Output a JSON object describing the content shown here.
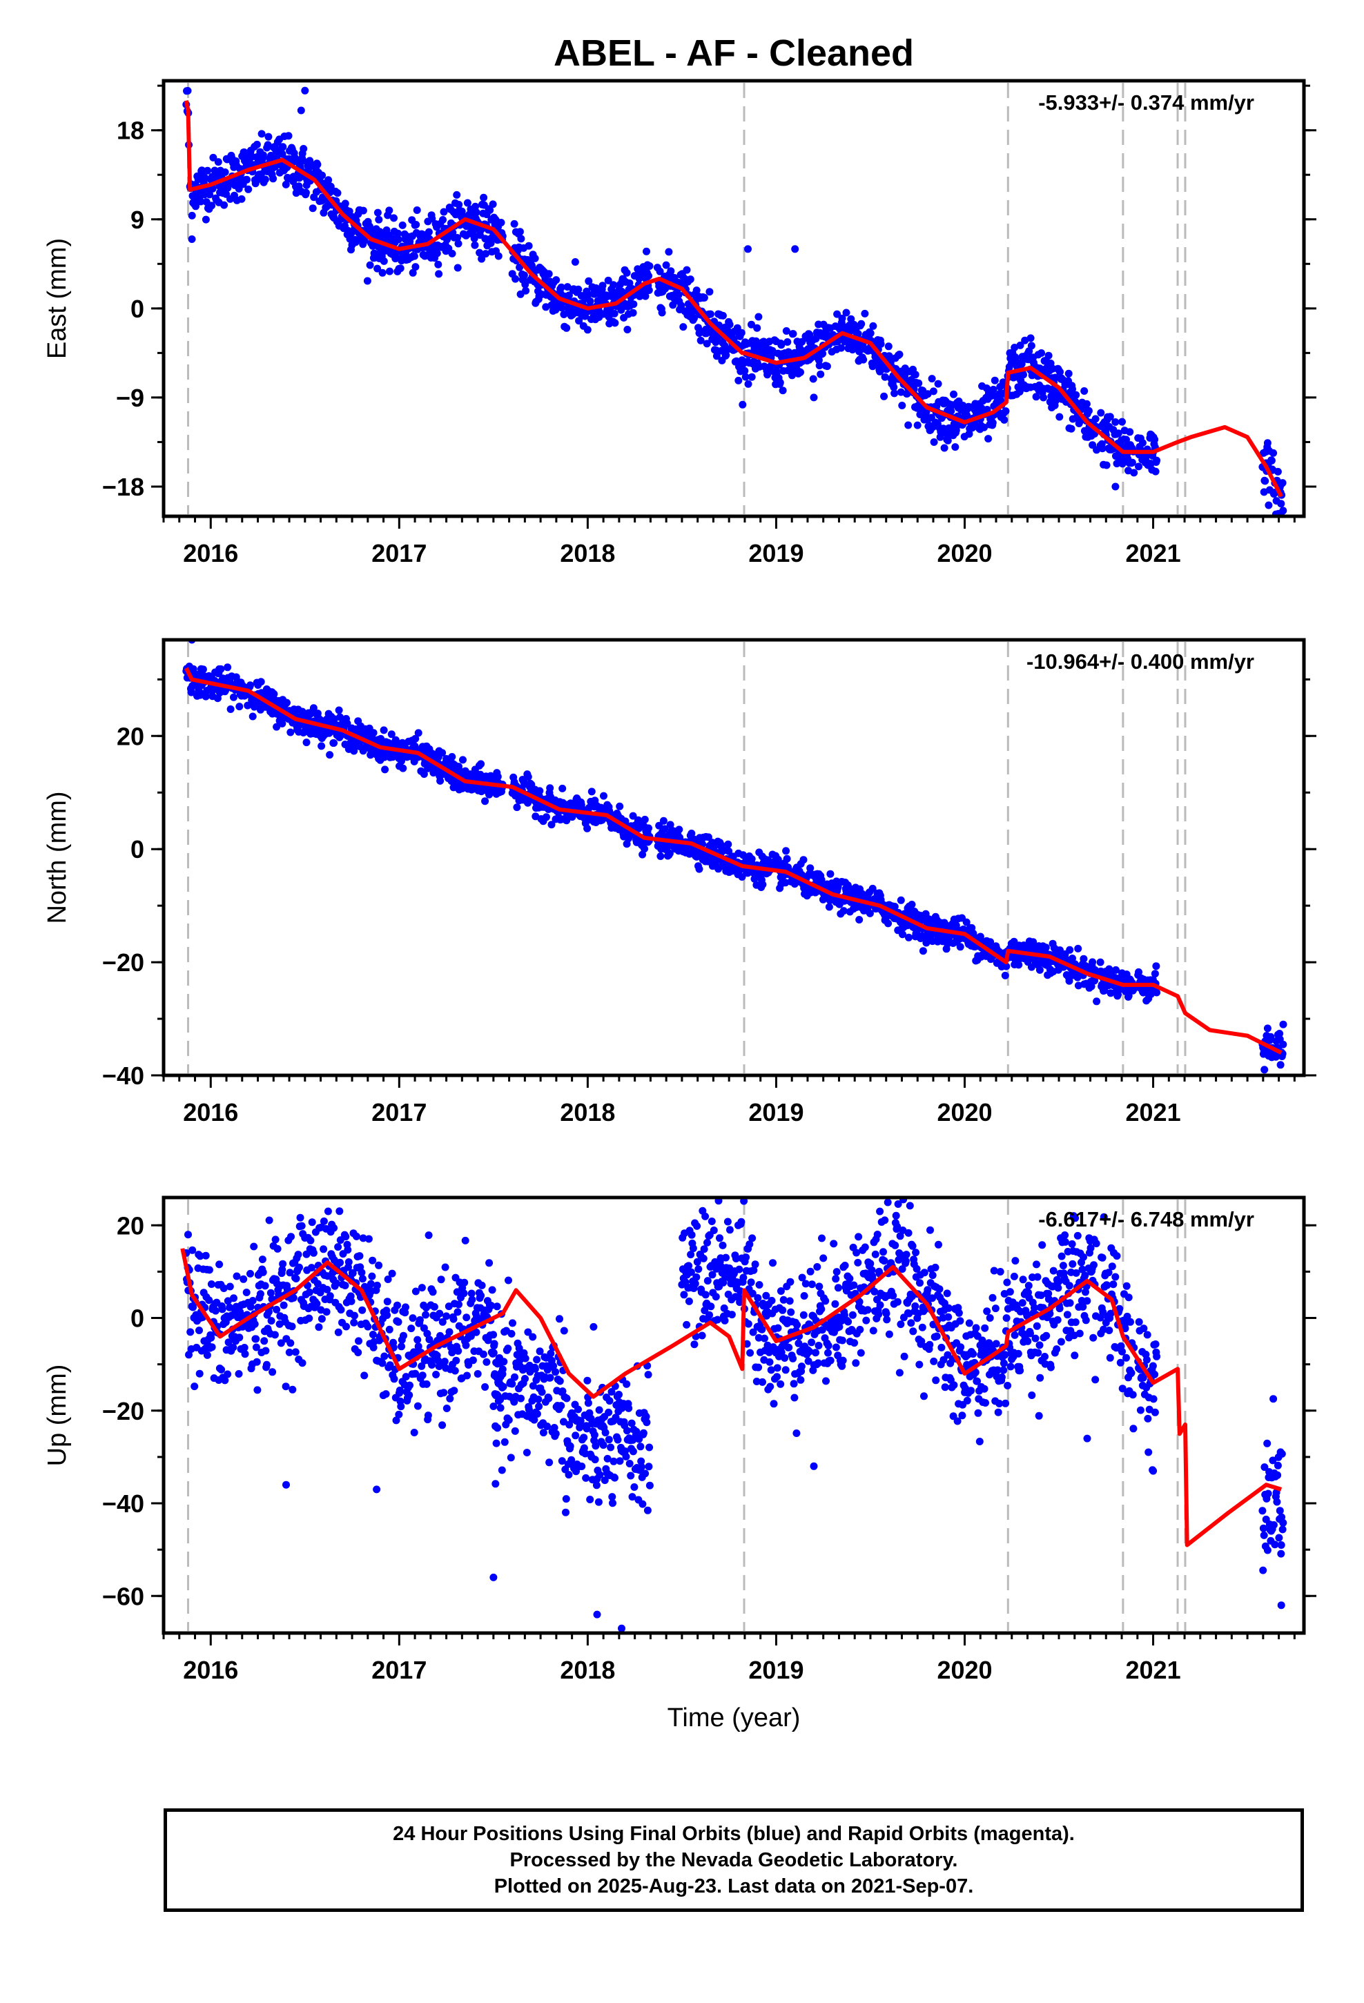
{
  "title": "ABEL  - AF - Cleaned",
  "footer": {
    "line1": "24 Hour Positions Using Final Orbits (blue) and Rapid Orbits (magenta).",
    "line2": "Processed by the Nevada Geodetic Laboratory.",
    "line3": "Plotted on 2025-Aug-23. Last data on 2021-Sep-07."
  },
  "colors": {
    "final_orbits": "#0000ff",
    "model_fit": "#ff0000",
    "event_lines": "#bbbbbb"
  },
  "chart_data": [
    {
      "type": "scatter",
      "ylabel": "East (mm)",
      "xlabel": "",
      "rate": "-5.933+/- 0.374 mm/yr",
      "xlim": [
        2015.75,
        2021.8
      ],
      "ylim": [
        -21,
        23
      ],
      "xticks": [
        2016,
        2017,
        2018,
        2019,
        2020,
        2021
      ],
      "yticks": [
        -18,
        -9,
        0,
        9,
        18
      ],
      "event_lines": [
        2015.88,
        2018.83,
        2020.23,
        2020.84,
        2021.13,
        2021.17
      ],
      "fit": [
        [
          2015.87,
          21
        ],
        [
          2015.88,
          20
        ],
        [
          2015.89,
          12
        ],
        [
          2016.0,
          12.5
        ],
        [
          2016.2,
          14
        ],
        [
          2016.38,
          15
        ],
        [
          2016.55,
          13
        ],
        [
          2016.7,
          9.5
        ],
        [
          2016.85,
          7
        ],
        [
          2017.0,
          6
        ],
        [
          2017.15,
          6.5
        ],
        [
          2017.35,
          9
        ],
        [
          2017.5,
          8
        ],
        [
          2017.7,
          3.5
        ],
        [
          2017.85,
          1
        ],
        [
          2018.0,
          0
        ],
        [
          2018.15,
          0.5
        ],
        [
          2018.3,
          2.5
        ],
        [
          2018.38,
          3
        ],
        [
          2018.5,
          2
        ],
        [
          2018.65,
          -1.5
        ],
        [
          2018.82,
          -4.5
        ],
        [
          2018.83,
          -4.5
        ],
        [
          2019.0,
          -5.5
        ],
        [
          2019.15,
          -5
        ],
        [
          2019.35,
          -2.5
        ],
        [
          2019.5,
          -3.5
        ],
        [
          2019.65,
          -7
        ],
        [
          2019.8,
          -10
        ],
        [
          2020.0,
          -11.5
        ],
        [
          2020.15,
          -10.5
        ],
        [
          2020.22,
          -9.5
        ],
        [
          2020.23,
          -6.5
        ],
        [
          2020.35,
          -6
        ],
        [
          2020.5,
          -8
        ],
        [
          2020.65,
          -11.5
        ],
        [
          2020.84,
          -14.5
        ],
        [
          2021.0,
          -14.5
        ],
        [
          2021.13,
          -13.5
        ],
        [
          2021.2,
          -13
        ],
        [
          2021.38,
          -12
        ],
        [
          2021.5,
          -13
        ],
        [
          2021.6,
          -16
        ],
        [
          2021.68,
          -19
        ]
      ],
      "scatter_noise": 1.3,
      "segments": [
        [
          2015.87,
          2015.885
        ],
        [
          2015.89,
          2017.55
        ],
        [
          2017.6,
          2018.33
        ],
        [
          2018.37,
          2020.7
        ],
        [
          2020.72,
          2020.9
        ],
        [
          2020.92,
          2021.02
        ],
        [
          2021.58,
          2021.69
        ]
      ],
      "outliers": [
        [
          2015.9,
          7
        ],
        [
          2016.5,
          22
        ],
        [
          2016.48,
          20
        ],
        [
          2018.85,
          6
        ],
        [
          2019.1,
          6
        ],
        [
          2019.35,
          -1
        ],
        [
          2019.2,
          -9
        ],
        [
          2019.95,
          -14
        ],
        [
          2020.35,
          -3
        ],
        [
          2020.8,
          -18
        ],
        [
          2021.68,
          -21
        ]
      ]
    },
    {
      "type": "scatter",
      "ylabel": "North (mm)",
      "xlabel": "",
      "rate": "-10.964+/- 0.400 mm/yr",
      "xlim": [
        2015.75,
        2021.8
      ],
      "ylim": [
        -40,
        37
      ],
      "xticks": [
        2016,
        2017,
        2018,
        2019,
        2020,
        2021
      ],
      "yticks": [
        -40,
        -20,
        0,
        20
      ],
      "event_lines": [
        2015.88,
        2018.83,
        2020.23,
        2020.84,
        2021.13,
        2021.17
      ],
      "fit": [
        [
          2015.87,
          32
        ],
        [
          2015.9,
          30
        ],
        [
          2016.2,
          28
        ],
        [
          2016.45,
          23
        ],
        [
          2016.7,
          21
        ],
        [
          2016.9,
          18
        ],
        [
          2017.1,
          17
        ],
        [
          2017.35,
          12
        ],
        [
          2017.6,
          11
        ],
        [
          2017.85,
          7
        ],
        [
          2018.1,
          6
        ],
        [
          2018.3,
          2
        ],
        [
          2018.55,
          1
        ],
        [
          2018.82,
          -3
        ],
        [
          2019.05,
          -4
        ],
        [
          2019.3,
          -8
        ],
        [
          2019.55,
          -10
        ],
        [
          2019.8,
          -14
        ],
        [
          2020.0,
          -15
        ],
        [
          2020.22,
          -20
        ],
        [
          2020.23,
          -18
        ],
        [
          2020.45,
          -19
        ],
        [
          2020.65,
          -22
        ],
        [
          2020.84,
          -24
        ],
        [
          2021.0,
          -24
        ],
        [
          2021.13,
          -26
        ],
        [
          2021.17,
          -29
        ],
        [
          2021.3,
          -32
        ],
        [
          2021.5,
          -33
        ],
        [
          2021.68,
          -36
        ]
      ],
      "scatter_noise": 1.3,
      "segments": [
        [
          2015.87,
          2017.55
        ],
        [
          2017.6,
          2018.33
        ],
        [
          2018.37,
          2020.7
        ],
        [
          2020.72,
          2020.9
        ],
        [
          2020.92,
          2021.02
        ],
        [
          2021.58,
          2021.69
        ]
      ],
      "outliers": [
        [
          2015.9,
          37
        ],
        [
          2021.59,
          -39
        ],
        [
          2021.69,
          -31
        ]
      ]
    },
    {
      "type": "scatter",
      "ylabel": "Up (mm)",
      "xlabel": "Time (year)",
      "rate": "-6.617+/- 6.748 mm/yr",
      "xlim": [
        2015.75,
        2021.8
      ],
      "ylim": [
        -68,
        26
      ],
      "xticks": [
        2016,
        2017,
        2018,
        2019,
        2020,
        2021
      ],
      "yticks": [
        -60,
        -40,
        -20,
        0,
        20
      ],
      "event_lines": [
        2015.88,
        2018.83,
        2020.23,
        2020.84,
        2021.13,
        2021.17
      ],
      "fit": [
        [
          2015.85,
          15
        ],
        [
          2015.9,
          5
        ],
        [
          2016.05,
          -4
        ],
        [
          2016.2,
          0
        ],
        [
          2016.45,
          6
        ],
        [
          2016.62,
          12
        ],
        [
          2016.8,
          6
        ],
        [
          2017.0,
          -11
        ],
        [
          2017.2,
          -6
        ],
        [
          2017.4,
          -2
        ],
        [
          2017.55,
          1
        ],
        [
          2017.62,
          6
        ],
        [
          2017.75,
          0
        ],
        [
          2017.9,
          -12
        ],
        [
          2018.03,
          -17
        ],
        [
          2018.2,
          -12
        ],
        [
          2018.45,
          -6
        ],
        [
          2018.65,
          -1
        ],
        [
          2018.75,
          -4
        ],
        [
          2018.82,
          -11
        ],
        [
          2018.83,
          6
        ],
        [
          2019.0,
          -5
        ],
        [
          2019.2,
          -2
        ],
        [
          2019.45,
          5
        ],
        [
          2019.62,
          11
        ],
        [
          2019.8,
          3
        ],
        [
          2020.0,
          -12
        ],
        [
          2020.15,
          -8
        ],
        [
          2020.22,
          -6
        ],
        [
          2020.23,
          -3
        ],
        [
          2020.45,
          2
        ],
        [
          2020.65,
          8
        ],
        [
          2020.78,
          4
        ],
        [
          2020.84,
          -4
        ],
        [
          2021.0,
          -14
        ],
        [
          2021.13,
          -11
        ],
        [
          2021.14,
          -25
        ],
        [
          2021.17,
          -23
        ],
        [
          2021.18,
          -49
        ],
        [
          2021.4,
          -42
        ],
        [
          2021.6,
          -36
        ],
        [
          2021.68,
          -37
        ]
      ],
      "scatter_noise": 7,
      "segments": [
        [
          2015.87,
          2017.55
        ],
        [
          2017.5,
          2018.33
        ],
        [
          2018.5,
          2020.7
        ],
        [
          2020.72,
          2020.9
        ],
        [
          2020.92,
          2021.02
        ],
        [
          2021.58,
          2021.69
        ]
      ],
      "offsets": [
        [
          2017.5,
          2017.88,
          -15
        ],
        [
          2017.88,
          2018.35,
          -27
        ],
        [
          2018.35,
          2018.5,
          -22
        ],
        [
          2018.5,
          2018.83,
          10
        ]
      ],
      "outliers": [
        [
          2015.88,
          18
        ],
        [
          2016.4,
          -36
        ],
        [
          2016.88,
          -37
        ],
        [
          2017.5,
          -56
        ],
        [
          2018.05,
          -64
        ],
        [
          2018.18,
          -67
        ],
        [
          2019.2,
          -32
        ],
        [
          2019.55,
          23
        ],
        [
          2020.65,
          -26
        ],
        [
          2021.0,
          -33
        ],
        [
          2021.68,
          -62
        ],
        [
          2021.68,
          -49
        ]
      ]
    }
  ]
}
